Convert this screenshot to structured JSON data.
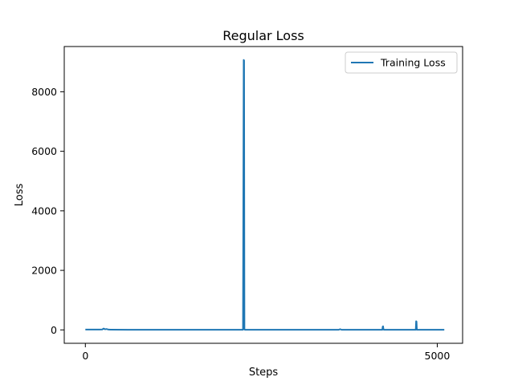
{
  "chart_data": {
    "type": "line",
    "title": "Regular Loss",
    "xlabel": "Steps",
    "ylabel": "Loss",
    "xlim": [
      -300,
      5360
    ],
    "ylim": [
      -450,
      9520
    ],
    "xticks": [
      0,
      5000
    ],
    "yticks": [
      0,
      2000,
      4000,
      6000,
      8000
    ],
    "grid": false,
    "legend_position": "top-right",
    "series": [
      {
        "name": "Training Loss",
        "color": "#1f77b4",
        "x": [
          0,
          200,
          240,
          260,
          280,
          300,
          330,
          360,
          600,
          1000,
          1500,
          2000,
          2240,
          2250,
          2255,
          2260,
          2265,
          2270,
          2280,
          2600,
          3000,
          3600,
          3620,
          3640,
          4000,
          4220,
          4225,
          4230,
          4235,
          4240,
          4500,
          4695,
          4700,
          4705,
          4710,
          5000,
          5100
        ],
        "y": [
          10,
          10,
          15,
          45,
          20,
          30,
          10,
          8,
          5,
          5,
          5,
          5,
          5,
          9070,
          9050,
          30,
          5,
          5,
          5,
          5,
          5,
          5,
          25,
          5,
          5,
          5,
          110,
          120,
          30,
          5,
          5,
          5,
          290,
          280,
          5,
          5,
          5
        ]
      }
    ]
  }
}
